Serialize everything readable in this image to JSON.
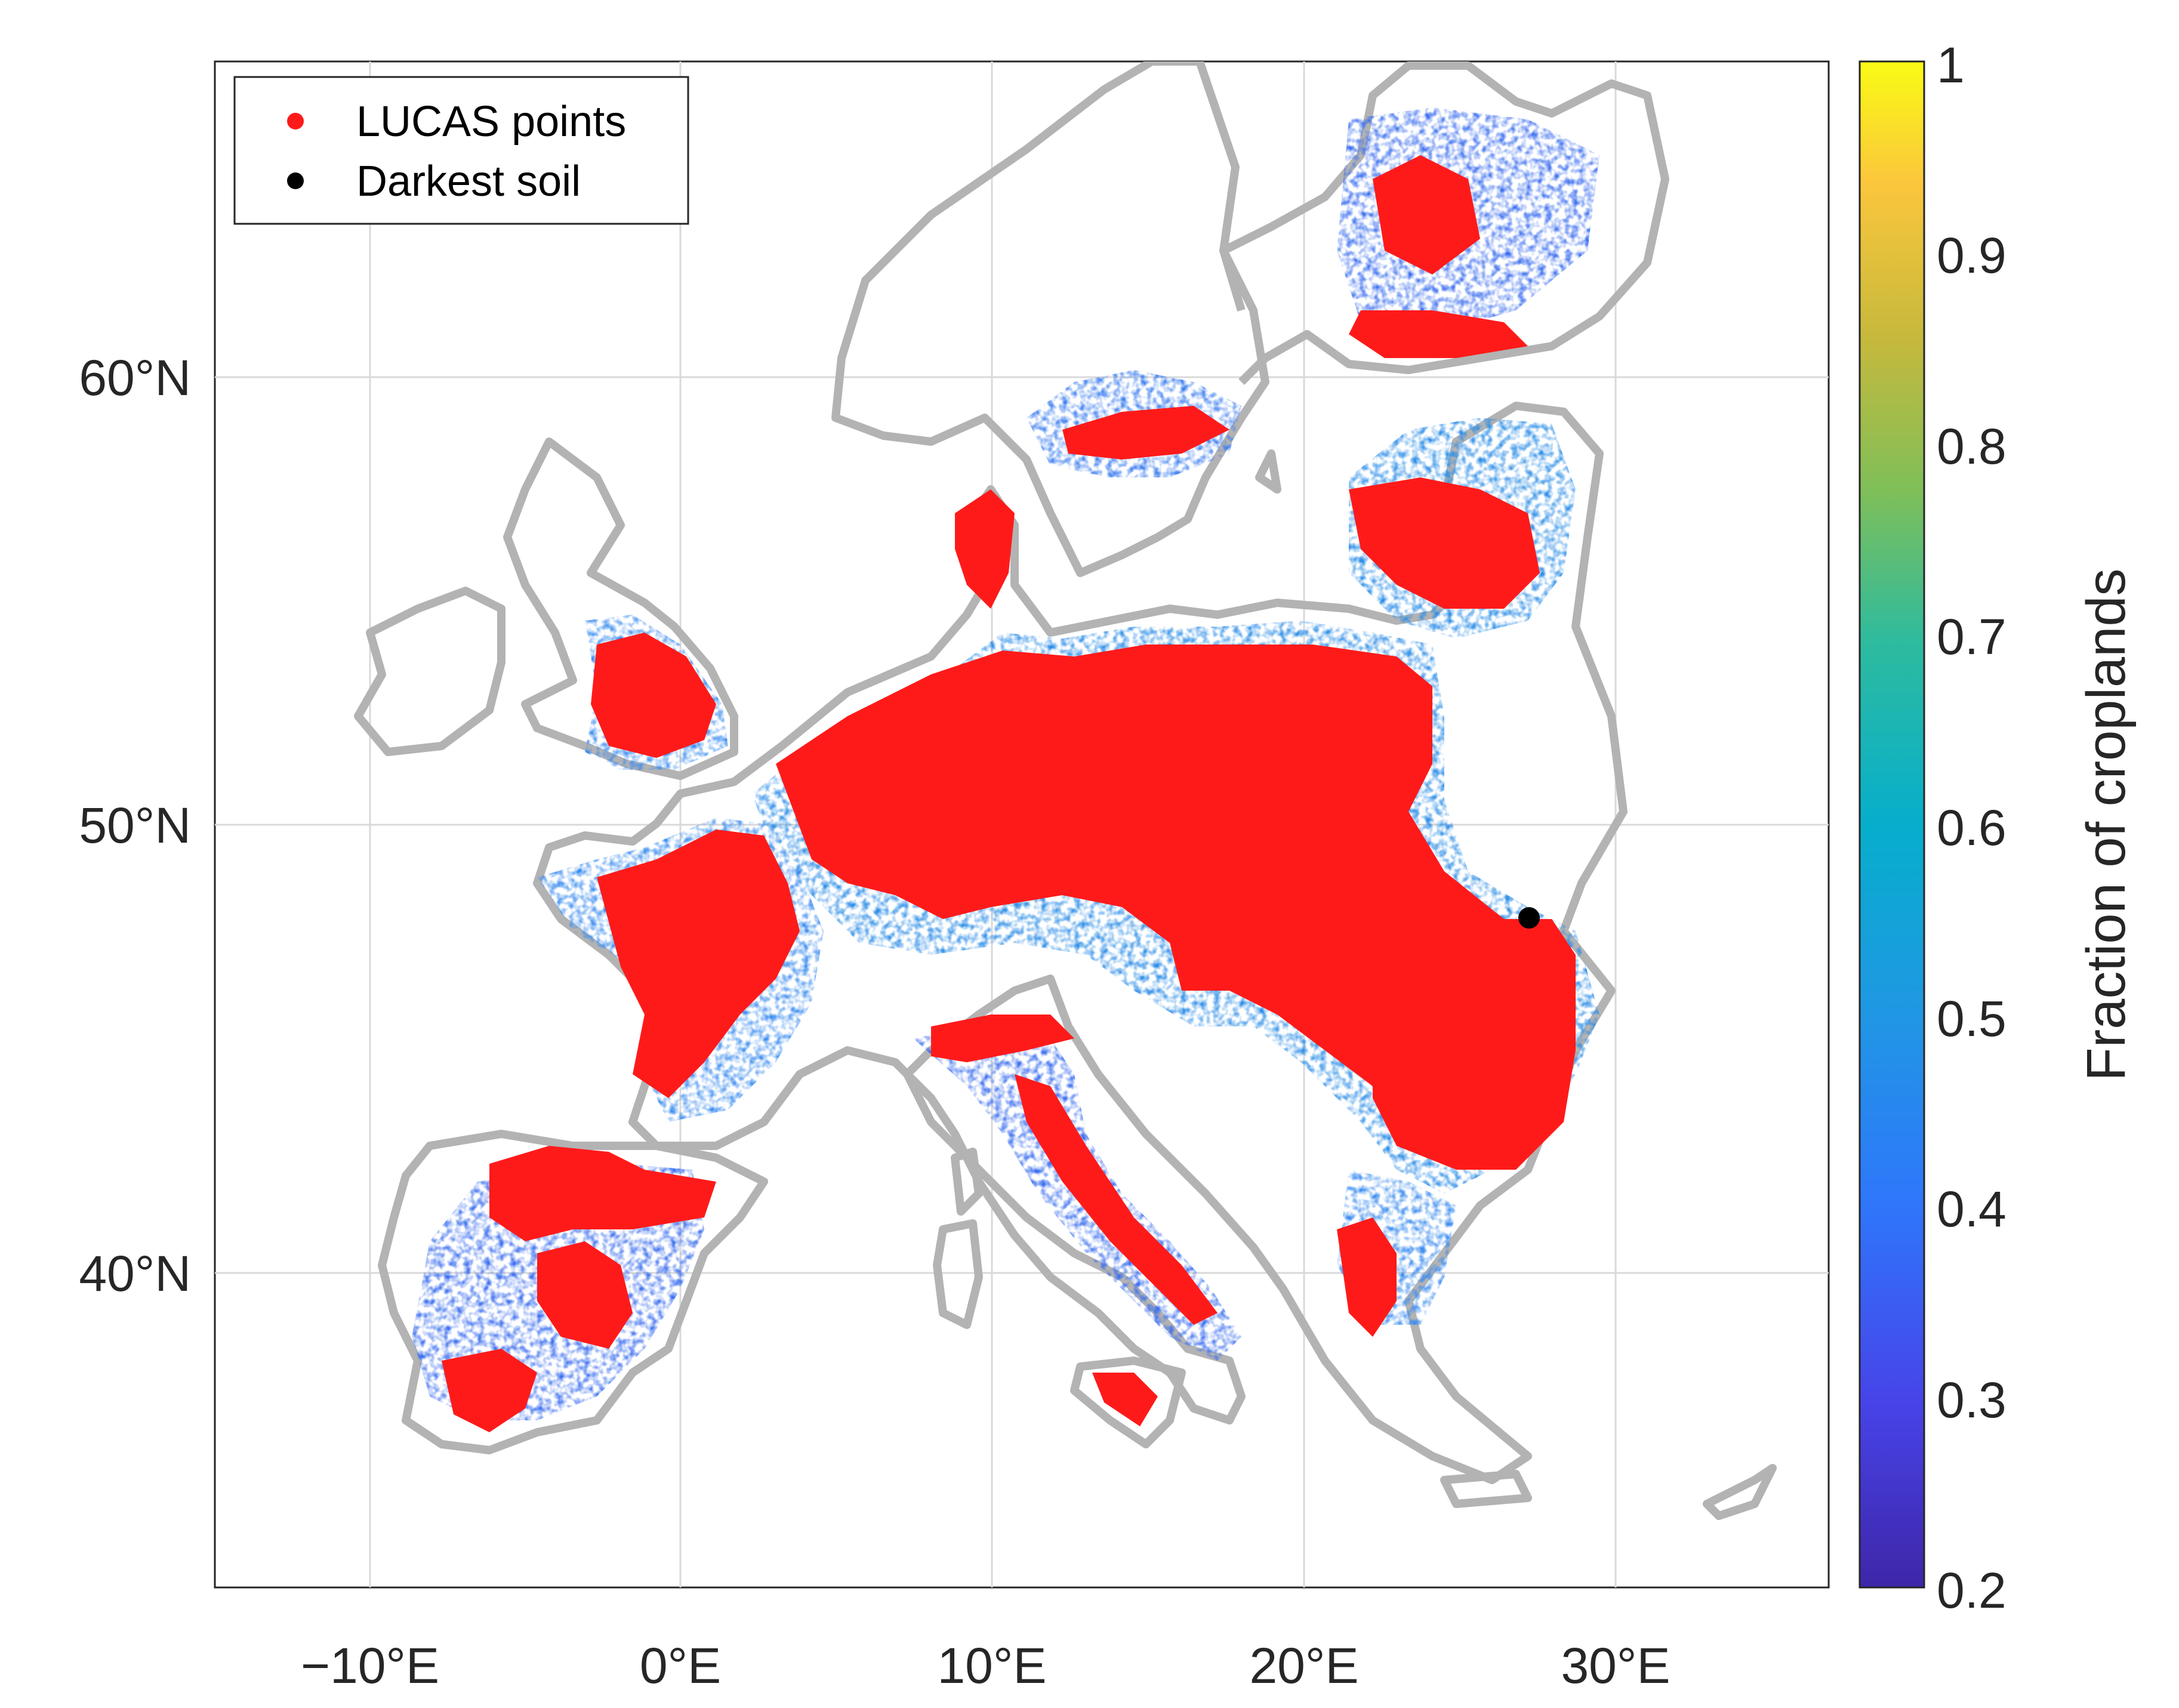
{
  "figure": {
    "x_ticks": [
      "−10°E",
      "0°E",
      "10°E",
      "20°E",
      "30°E"
    ],
    "y_ticks": [
      "60°N",
      "50°N",
      "40°N"
    ],
    "legend": {
      "items": [
        {
          "label": "LUCAS points",
          "color": "#ff1a1a",
          "icon": "red-dot-icon"
        },
        {
          "label": "Darkest soil",
          "color": "#000000",
          "icon": "black-dot-icon"
        }
      ]
    },
    "colorbar": {
      "label": "Fraction of croplands",
      "ticks": [
        "1",
        "0.9",
        "0.8",
        "0.7",
        "0.6",
        "0.5",
        "0.4",
        "0.3",
        "0.2"
      ],
      "range": [
        0.2,
        1
      ],
      "colormap": "parula"
    },
    "colors": {
      "land_outline": "#b3b3b3",
      "lucas_points": "#ff1a1a",
      "darkest_soil": "#000000",
      "gridlines": "#d9d9d9"
    },
    "darkest_soil_location": {
      "lon": 27.0,
      "lat": 48.2
    }
  },
  "chart_data": {
    "type": "map",
    "x_axis": {
      "ticks_deg_e": [
        -10,
        0,
        10,
        20,
        30
      ],
      "range_deg_e": [
        -15,
        37
      ]
    },
    "y_axis": {
      "ticks_deg_n": [
        40,
        50,
        60
      ],
      "range_deg_n": [
        33,
        67
      ]
    },
    "grid": true,
    "legend_position": "top-left",
    "series": [
      {
        "name": "LUCAS points",
        "marker": "dot",
        "color": "#ff1a1a"
      },
      {
        "name": "Darkest soil",
        "marker": "dot",
        "color": "#000000",
        "points": [
          {
            "lon": 27.0,
            "lat": 48.2
          }
        ]
      }
    ],
    "colorbar": {
      "label": "Fraction of croplands",
      "min": 0.2,
      "max": 1.0,
      "ticks": [
        0.2,
        0.3,
        0.4,
        0.5,
        0.6,
        0.7,
        0.8,
        0.9,
        1.0
      ]
    }
  }
}
